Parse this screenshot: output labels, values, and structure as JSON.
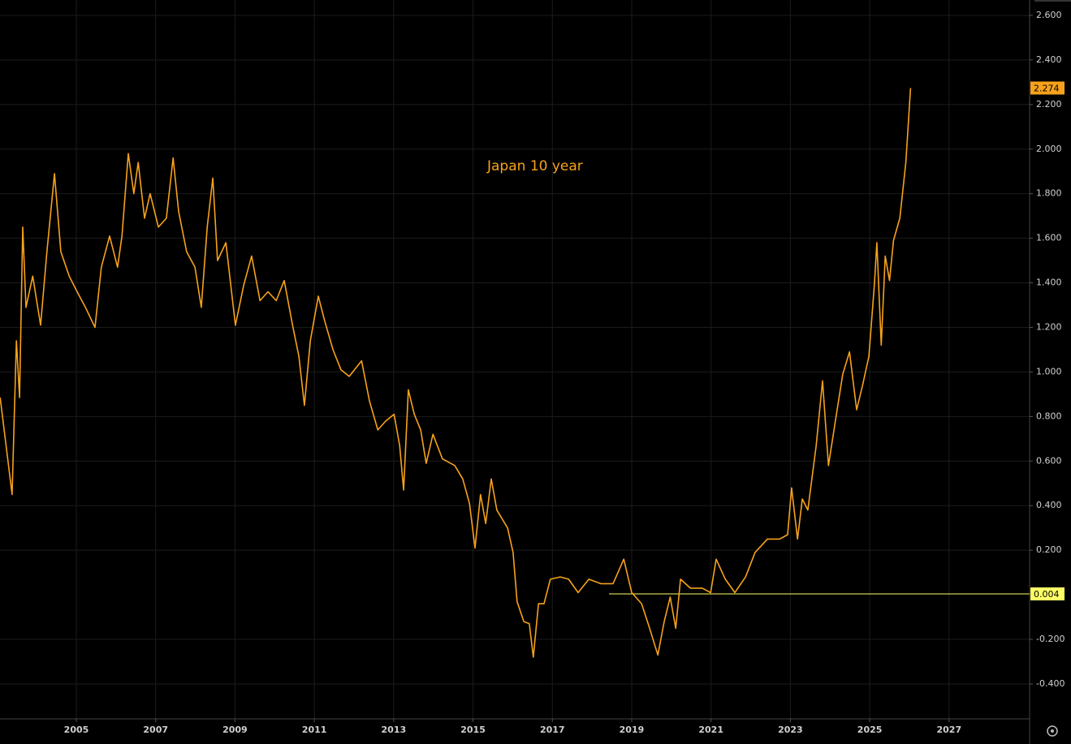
{
  "chart_data": {
    "type": "line",
    "annotation": "Japan 10 year",
    "x": [
      2003.08,
      2003.38,
      2003.49,
      2003.57,
      2003.65,
      2003.73,
      2003.9,
      2004.1,
      2004.26,
      2004.45,
      2004.61,
      2004.82,
      2005.02,
      2005.23,
      2005.47,
      2005.63,
      2005.84,
      2006.04,
      2006.15,
      2006.31,
      2006.45,
      2006.56,
      2006.72,
      2006.86,
      2007.07,
      2007.27,
      2007.44,
      2007.58,
      2007.78,
      2007.99,
      2008.15,
      2008.3,
      2008.44,
      2008.56,
      2008.77,
      2009.01,
      2009.22,
      2009.42,
      2009.63,
      2009.83,
      2010.04,
      2010.24,
      2010.45,
      2010.61,
      2010.75,
      2010.9,
      2011.1,
      2011.26,
      2011.47,
      2011.67,
      2011.88,
      2012.19,
      2012.39,
      2012.6,
      2012.8,
      2013.01,
      2013.15,
      2013.25,
      2013.37,
      2013.52,
      2013.68,
      2013.82,
      2013.99,
      2014.23,
      2014.54,
      2014.74,
      2014.91,
      2015.05,
      2015.19,
      2015.32,
      2015.46,
      2015.6,
      2015.87,
      2016.01,
      2016.11,
      2016.28,
      2016.42,
      2016.52,
      2016.65,
      2016.79,
      2016.95,
      2017.2,
      2017.41,
      2017.65,
      2017.92,
      2018.22,
      2018.53,
      2018.8,
      2019.0,
      2019.25,
      2019.45,
      2019.66,
      2019.82,
      2019.97,
      2020.11,
      2020.23,
      2020.48,
      2020.78,
      2020.99,
      2021.13,
      2021.36,
      2021.6,
      2021.87,
      2022.11,
      2022.42,
      2022.73,
      2022.93,
      2023.03,
      2023.18,
      2023.3,
      2023.44,
      2023.65,
      2023.81,
      2023.96,
      2024.16,
      2024.32,
      2024.49,
      2024.67,
      2024.82,
      2024.98,
      2025.12,
      2025.18,
      2025.29,
      2025.39,
      2025.5,
      2025.6,
      2025.76,
      2025.91,
      2026.03
    ],
    "series": [
      {
        "name": "Japan 10 year",
        "color": "#f7a21b",
        "values": [
          0.885,
          0.45,
          1.14,
          0.885,
          1.65,
          1.29,
          1.43,
          1.21,
          1.54,
          1.89,
          1.54,
          1.43,
          1.36,
          1.29,
          1.2,
          1.47,
          1.61,
          1.47,
          1.61,
          1.98,
          1.8,
          1.94,
          1.69,
          1.8,
          1.65,
          1.69,
          1.96,
          1.72,
          1.54,
          1.47,
          1.29,
          1.65,
          1.87,
          1.5,
          1.58,
          1.21,
          1.39,
          1.52,
          1.32,
          1.36,
          1.32,
          1.41,
          1.21,
          1.07,
          0.85,
          1.14,
          1.34,
          1.23,
          1.1,
          1.01,
          0.98,
          1.05,
          0.87,
          0.74,
          0.78,
          0.81,
          0.67,
          0.47,
          0.92,
          0.81,
          0.74,
          0.59,
          0.72,
          0.61,
          0.58,
          0.52,
          0.41,
          0.21,
          0.45,
          0.32,
          0.52,
          0.38,
          0.3,
          0.19,
          -0.03,
          -0.12,
          -0.13,
          -0.28,
          -0.04,
          -0.04,
          0.07,
          0.08,
          0.07,
          0.01,
          0.07,
          0.05,
          0.05,
          0.16,
          0.01,
          -0.04,
          -0.15,
          -0.27,
          -0.12,
          -0.01,
          -0.15,
          0.07,
          0.03,
          0.03,
          0.01,
          0.16,
          0.07,
          0.01,
          0.08,
          0.19,
          0.25,
          0.25,
          0.27,
          0.48,
          0.25,
          0.43,
          0.38,
          0.67,
          0.96,
          0.58,
          0.81,
          0.99,
          1.09,
          0.83,
          0.94,
          1.07,
          1.4,
          1.58,
          1.12,
          1.52,
          1.41,
          1.59,
          1.69,
          1.94,
          2.274
        ]
      }
    ],
    "reference_line": {
      "value": 0.004,
      "start_x": 2018.43,
      "color": "#ffff66"
    },
    "xlim": [
      2003.076,
      2029.03
    ],
    "xticks": [
      2005,
      2007,
      2009,
      2011,
      2013,
      2015,
      2017,
      2019,
      2021,
      2023,
      2025,
      2027
    ],
    "ylim": [
      -0.5566,
      2.669
    ],
    "yticks": [
      {
        "value": 2.6,
        "label": "2.600"
      },
      {
        "value": 2.4,
        "label": "2.400"
      },
      {
        "value": 2.2,
        "label": "2.200"
      },
      {
        "value": 2.0,
        "label": "2.000"
      },
      {
        "value": 1.8,
        "label": "1.800"
      },
      {
        "value": 1.6,
        "label": "1.600"
      },
      {
        "value": 1.4,
        "label": "1.400"
      },
      {
        "value": 1.2,
        "label": "1.200"
      },
      {
        "value": 1.0,
        "label": "1.000"
      },
      {
        "value": 0.8,
        "label": "0.800"
      },
      {
        "value": 0.6,
        "label": "0.600"
      },
      {
        "value": 0.4,
        "label": "0.400"
      },
      {
        "value": 0.2,
        "label": "0.200"
      },
      {
        "value": -0.2,
        "label": "-0.200"
      },
      {
        "value": -0.4,
        "label": "-0.400"
      }
    ],
    "grid": true
  }
}
